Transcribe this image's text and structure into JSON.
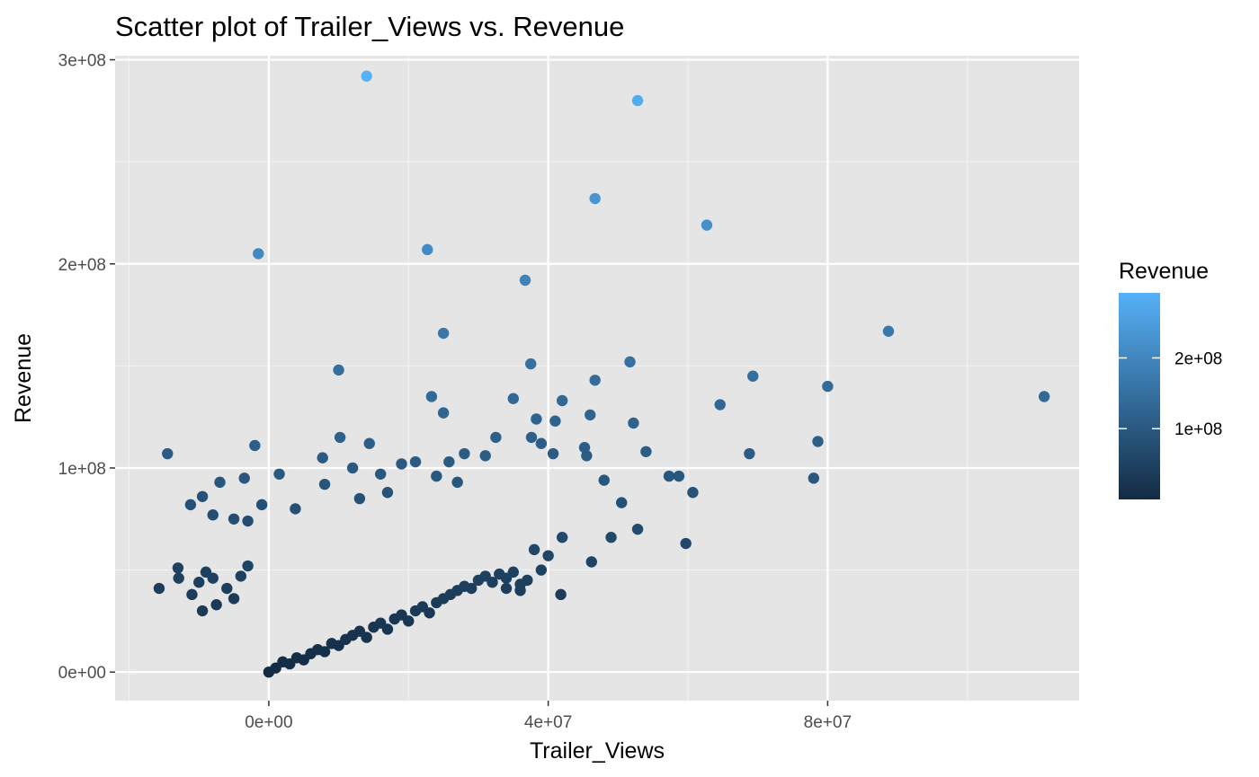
{
  "chart_data": {
    "type": "scatter",
    "title": "Scatter plot of Trailer_Views vs. Revenue",
    "xlabel": "Trailer_Views",
    "ylabel": "Revenue",
    "xlim": [
      -22000000,
      116000000
    ],
    "ylim": [
      -14000000,
      302000000
    ],
    "x_ticks": [
      {
        "value": 0,
        "label": "0e+00"
      },
      {
        "value": 40000000,
        "label": "4e+07"
      },
      {
        "value": 80000000,
        "label": "8e+07"
      }
    ],
    "y_ticks": [
      {
        "value": 0,
        "label": "0e+00"
      },
      {
        "value": 100000000,
        "label": "1e+08"
      },
      {
        "value": 200000000,
        "label": "2e+08"
      },
      {
        "value": 300000000,
        "label": "3e+08"
      }
    ],
    "grid": true,
    "background": "#e5e5e5",
    "legend": {
      "title": "Revenue",
      "placement": "right",
      "type": "colorbar",
      "range": [
        0,
        292000000
      ],
      "ticks": [
        {
          "value": 100000000,
          "label": "1e+08"
        },
        {
          "value": 200000000,
          "label": "2e+08"
        }
      ],
      "low_color": "#132b43",
      "high_color": "#56b1f7"
    },
    "series": [
      {
        "points": [
          [
            14000000,
            292000000
          ],
          [
            52800000,
            280000000
          ],
          [
            46700000,
            232000000
          ],
          [
            62700000,
            219000000
          ],
          [
            -1500000,
            205000000
          ],
          [
            22700000,
            207000000
          ],
          [
            36700000,
            192000000
          ],
          [
            25000000,
            166000000
          ],
          [
            88700000,
            167000000
          ],
          [
            37500000,
            151000000
          ],
          [
            10000000,
            148000000
          ],
          [
            51700000,
            152000000
          ],
          [
            69300000,
            145000000
          ],
          [
            80000000,
            140000000
          ],
          [
            46700000,
            143000000
          ],
          [
            23300000,
            135000000
          ],
          [
            35000000,
            134000000
          ],
          [
            42000000,
            133000000
          ],
          [
            111000000,
            135000000
          ],
          [
            64600000,
            131000000
          ],
          [
            25000000,
            127000000
          ],
          [
            46000000,
            126000000
          ],
          [
            38300000,
            124000000
          ],
          [
            41000000,
            123000000
          ],
          [
            52200000,
            122000000
          ],
          [
            32500000,
            115000000
          ],
          [
            37600000,
            115000000
          ],
          [
            10200000,
            115000000
          ],
          [
            14400000,
            112000000
          ],
          [
            45200000,
            110000000
          ],
          [
            -2000000,
            111000000
          ],
          [
            39000000,
            112000000
          ],
          [
            78600000,
            113000000
          ],
          [
            -14500000,
            107000000
          ],
          [
            54000000,
            108000000
          ],
          [
            40700000,
            107000000
          ],
          [
            68800000,
            107000000
          ],
          [
            45500000,
            106000000
          ],
          [
            7700000,
            105000000
          ],
          [
            28000000,
            107000000
          ],
          [
            31000000,
            106000000
          ],
          [
            21000000,
            103000000
          ],
          [
            25800000,
            103000000
          ],
          [
            48000000,
            94000000
          ],
          [
            57300000,
            96000000
          ],
          [
            58700000,
            96000000
          ],
          [
            60700000,
            88000000
          ],
          [
            78000000,
            95000000
          ],
          [
            50500000,
            83000000
          ],
          [
            49000000,
            66000000
          ],
          [
            52800000,
            70000000
          ],
          [
            59700000,
            63000000
          ],
          [
            42000000,
            66000000
          ],
          [
            46200000,
            54000000
          ],
          [
            41800000,
            38000000
          ],
          [
            1500000,
            97000000
          ],
          [
            -3500000,
            95000000
          ],
          [
            -7000000,
            93000000
          ],
          [
            -9500000,
            86000000
          ],
          [
            -11200000,
            82000000
          ],
          [
            -8000000,
            77000000
          ],
          [
            -5000000,
            75000000
          ],
          [
            -3000000,
            74000000
          ],
          [
            -1000000,
            82000000
          ],
          [
            12000000,
            100000000
          ],
          [
            16000000,
            97000000
          ],
          [
            19000000,
            102000000
          ],
          [
            24000000,
            96000000
          ],
          [
            27000000,
            93000000
          ],
          [
            8000000,
            92000000
          ],
          [
            3800000,
            80000000
          ],
          [
            13000000,
            85000000
          ],
          [
            17000000,
            88000000
          ],
          [
            -15700000,
            41000000
          ],
          [
            -12900000,
            46000000
          ],
          [
            -13000000,
            51000000
          ],
          [
            -10000000,
            44000000
          ],
          [
            -9000000,
            49000000
          ],
          [
            -8000000,
            46000000
          ],
          [
            -11000000,
            38000000
          ],
          [
            -9500000,
            30000000
          ],
          [
            -7500000,
            33000000
          ],
          [
            -6000000,
            41000000
          ],
          [
            -5000000,
            36000000
          ],
          [
            -4000000,
            47000000
          ],
          [
            -3000000,
            52000000
          ],
          [
            0,
            0
          ],
          [
            1000000,
            2000000
          ],
          [
            2000000,
            5000000
          ],
          [
            3000000,
            4000000
          ],
          [
            4000000,
            7000000
          ],
          [
            5000000,
            6000000
          ],
          [
            6000000,
            9000000
          ],
          [
            7000000,
            11000000
          ],
          [
            8000000,
            10000000
          ],
          [
            9000000,
            14000000
          ],
          [
            10000000,
            13000000
          ],
          [
            11000000,
            16000000
          ],
          [
            12000000,
            18000000
          ],
          [
            13000000,
            20000000
          ],
          [
            14000000,
            17000000
          ],
          [
            15000000,
            22000000
          ],
          [
            16000000,
            24000000
          ],
          [
            17000000,
            21000000
          ],
          [
            18000000,
            26000000
          ],
          [
            19000000,
            28000000
          ],
          [
            20000000,
            25000000
          ],
          [
            21000000,
            30000000
          ],
          [
            22000000,
            32000000
          ],
          [
            23000000,
            29000000
          ],
          [
            24000000,
            34000000
          ],
          [
            25000000,
            36000000
          ],
          [
            26000000,
            38000000
          ],
          [
            27000000,
            40000000
          ],
          [
            28000000,
            42000000
          ],
          [
            29000000,
            41000000
          ],
          [
            30000000,
            45000000
          ],
          [
            31000000,
            47000000
          ],
          [
            32000000,
            44000000
          ],
          [
            33000000,
            48000000
          ],
          [
            34000000,
            46000000
          ],
          [
            35000000,
            49000000
          ],
          [
            36000000,
            43000000
          ],
          [
            37000000,
            45000000
          ],
          [
            36000000,
            40000000
          ],
          [
            34000000,
            41000000
          ],
          [
            39000000,
            50000000
          ],
          [
            40000000,
            57000000
          ],
          [
            38000000,
            60000000
          ]
        ]
      }
    ]
  }
}
